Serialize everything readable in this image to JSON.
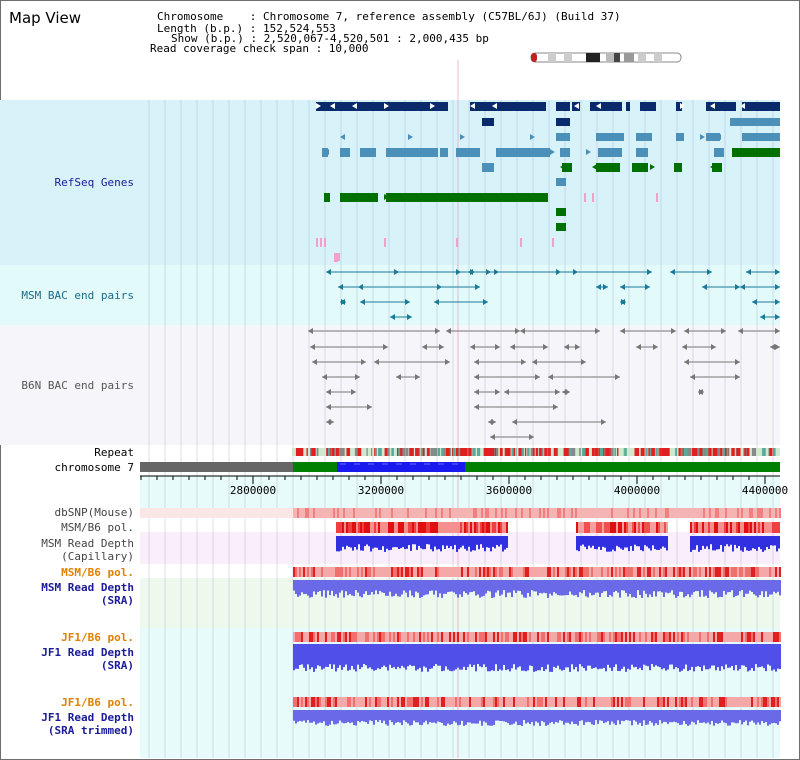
{
  "view_title": "Map View",
  "info": {
    "chromosome_line": "Chromosome    : Chromosome 7, reference assembly (C57BL/6J) (Build 37)",
    "length_line": "Length (b.p.) : 152,524,553",
    "show_line": "Show (b.p.) : 2,520,067-4,520,501 : 2,000,435 bp",
    "coverage_line": "Read coverage check span : 10,000"
  },
  "tracks": {
    "refseq": "RefSeq Genes",
    "msm_bac": "MSM BAC end pairs",
    "b6n_bac": "B6N BAC end pairs",
    "repeat": "Repeat",
    "chromosome": "chromosome 7",
    "dbsnp": "dbSNP(Mouse)",
    "msm_pol": "MSM/B6 pol.",
    "msm_depth_cap": "MSM Read Depth\n(Capillary)",
    "msm_pol_sra": "MSM/B6 pol.",
    "msm_depth_sra": "MSM Read Depth\n(SRA)",
    "jf1_pol": "JF1/B6 pol.",
    "jf1_depth_sra": "JF1 Read Depth\n(SRA)",
    "jf1_pol_trim": "JF1/B6 pol.",
    "jf1_depth_trim": "JF1 Read Depth\n(SRA trimmed)"
  },
  "axis_ticks": [
    "2800000",
    "3200000",
    "3600000",
    "4000000",
    "4400000"
  ],
  "colors": {
    "refseq_dark": "#0b2a6b",
    "refseq_mid": "#4a90b8",
    "refseq_green": "#007000",
    "msm_bac": "#1b7a9a",
    "b6n_bac": "#777777",
    "repeat_red": "#e02020",
    "chrom_blue": "#1a1aee",
    "chrom_green": "#008000",
    "depth_blue": "#3030e0",
    "pol_label": "#e08000"
  }
}
